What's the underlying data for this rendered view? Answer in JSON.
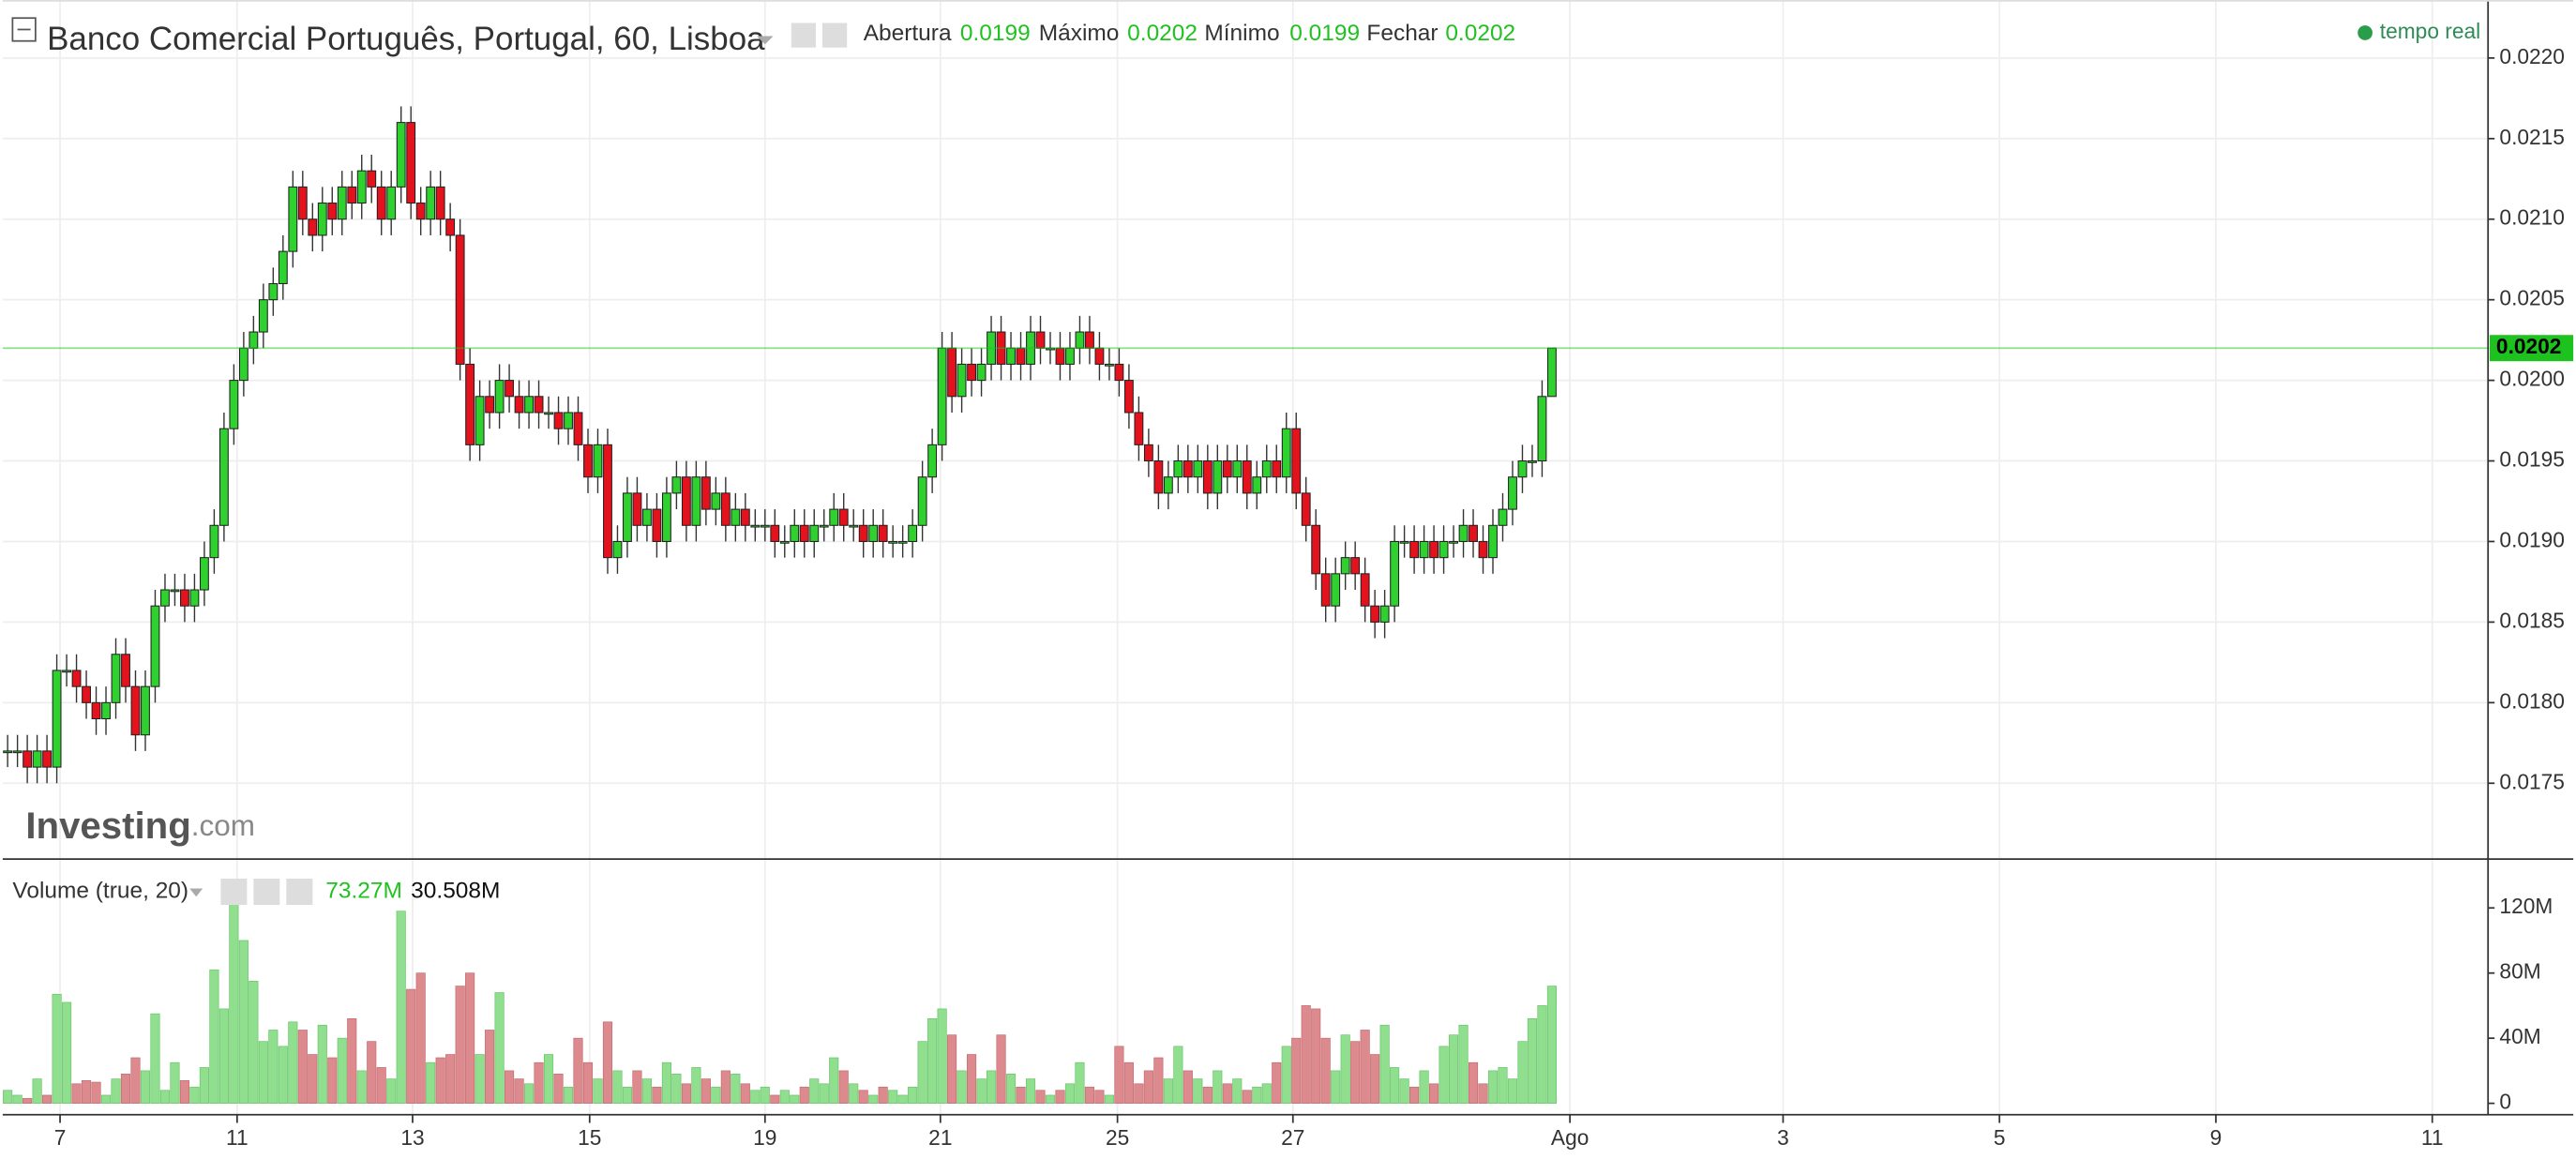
{
  "header": {
    "title": "Banco Comercial Português, Portugal, 60, Lisboa",
    "ohlc_labels": [
      "Abertura",
      "Máximo",
      "Mínimo",
      "Fechar"
    ],
    "ohlc_values": [
      "0.0199",
      "0.0202",
      "0.0199",
      "0.0202"
    ],
    "status": "tempo real",
    "volume_label": "Volume (true, 20)",
    "volume_values": [
      "73.27M",
      "30.508M"
    ],
    "watermark": [
      "Investing",
      ".com"
    ]
  },
  "chart_data": [
    {
      "type": "candlestick",
      "up_color": "#2ed12e",
      "down_color": "#e3121c",
      "xlim": [
        -0.5,
        252.17
      ],
      "ylim": [
        0.01704,
        0.02236
      ],
      "xticks": [
        {
          "value": 5.33,
          "label": "7"
        },
        {
          "value": 23.33,
          "label": "11"
        },
        {
          "value": 41.17,
          "label": "13"
        },
        {
          "value": 59.17,
          "label": "15"
        },
        {
          "value": 77,
          "label": "19"
        },
        {
          "value": 94.83,
          "label": "21"
        },
        {
          "value": 112.83,
          "label": "25"
        },
        {
          "value": 130.67,
          "label": "27"
        },
        {
          "value": 158.83,
          "label": "Ago"
        },
        {
          "value": 180.5,
          "label": "3"
        },
        {
          "value": 202.5,
          "label": "5"
        },
        {
          "value": 224.5,
          "label": "9"
        },
        {
          "value": 246.5,
          "label": "11"
        }
      ],
      "yticks": [
        0.0175,
        {
          "value": 0.018,
          "label": "0.0180"
        },
        0.0185,
        {
          "value": 0.019,
          "label": "0.0190"
        },
        0.0195,
        {
          "value": 0.02,
          "label": "0.0200"
        },
        0.0205,
        {
          "value": 0.021,
          "label": "0.0210"
        },
        0.0215,
        {
          "value": 0.022,
          "label": "0.0220"
        }
      ],
      "current": {
        "value": 0.0202,
        "label": "0.0202",
        "color": "#1ec21e"
      },
      "open": [
        0.0177,
        0.0177,
        0.0177,
        0.0176,
        0.0177,
        0.0176,
        0.0182,
        0.0182,
        0.0181,
        0.018,
        0.0179,
        0.018,
        0.0183,
        0.0181,
        0.0178,
        0.0181,
        0.0186,
        0.0187,
        0.0187,
        0.0186,
        0.0187,
        0.0189,
        0.0191,
        0.0197,
        0.02,
        0.0202,
        0.0203,
        0.0205,
        0.0206,
        0.0208,
        0.0212,
        0.021,
        0.0209,
        0.0211,
        0.021,
        0.0212,
        0.0211,
        0.0213,
        0.0212,
        0.021,
        0.0212,
        0.0216,
        0.0211,
        0.021,
        0.0212,
        0.021,
        0.0209,
        0.0201,
        0.0196,
        0.0199,
        0.0198,
        0.02,
        0.0199,
        0.0198,
        0.0199,
        0.0198,
        0.0198,
        0.0197,
        0.0198,
        0.0196,
        0.0194,
        0.0196,
        0.0189,
        0.019,
        0.0193,
        0.0191,
        0.0192,
        0.019,
        0.0193,
        0.0194,
        0.0191,
        0.0194,
        0.0192,
        0.0193,
        0.0191,
        0.0192,
        0.0191,
        0.0191,
        0.0191,
        0.019,
        0.019,
        0.0191,
        0.019,
        0.0191,
        0.0191,
        0.0192,
        0.0191,
        0.0191,
        0.019,
        0.0191,
        0.019,
        0.019,
        0.019,
        0.0191,
        0.0194,
        0.0196,
        0.0202,
        0.0199,
        0.0201,
        0.02,
        0.0201,
        0.0203,
        0.0201,
        0.0202,
        0.0201,
        0.0203,
        0.0202,
        0.0202,
        0.0201,
        0.0202,
        0.0203,
        0.0202,
        0.0201,
        0.0201,
        0.02,
        0.0198,
        0.0196,
        0.0195,
        0.0193,
        0.0194,
        0.0195,
        0.0194,
        0.0195,
        0.0193,
        0.0195,
        0.0194,
        0.0195,
        0.0193,
        0.0194,
        0.0195,
        0.0194,
        0.0197,
        0.0193,
        0.0191,
        0.0188,
        0.0186,
        0.0188,
        0.0189,
        0.0188,
        0.0186,
        0.0185,
        0.0186,
        0.019,
        0.019,
        0.0189,
        0.019,
        0.0189,
        0.019,
        0.019,
        0.0191,
        0.019,
        0.0189,
        0.0191,
        0.0192,
        0.0194,
        0.0195,
        0.0195,
        0.0199
      ],
      "high": [
        0.0178,
        0.0178,
        0.0178,
        0.0178,
        0.0178,
        0.0183,
        0.0183,
        0.0183,
        0.0182,
        0.0181,
        0.0181,
        0.0184,
        0.0184,
        0.0182,
        0.0182,
        0.0187,
        0.0188,
        0.0188,
        0.0188,
        0.0188,
        0.019,
        0.0192,
        0.0198,
        0.0201,
        0.0203,
        0.0204,
        0.0206,
        0.0207,
        0.0209,
        0.0213,
        0.0213,
        0.0211,
        0.0212,
        0.0212,
        0.0213,
        0.0213,
        0.0214,
        0.0214,
        0.0213,
        0.0213,
        0.0217,
        0.0217,
        0.0212,
        0.0213,
        0.0213,
        0.0211,
        0.021,
        0.0202,
        0.02,
        0.02,
        0.0201,
        0.0201,
        0.02,
        0.02,
        0.02,
        0.0199,
        0.0199,
        0.0199,
        0.0199,
        0.0197,
        0.0197,
        0.0197,
        0.0191,
        0.0194,
        0.0194,
        0.0193,
        0.0193,
        0.0194,
        0.0195,
        0.0195,
        0.0195,
        0.0195,
        0.0194,
        0.0194,
        0.0193,
        0.0193,
        0.0192,
        0.0192,
        0.0192,
        0.0191,
        0.0192,
        0.0192,
        0.0192,
        0.0192,
        0.0193,
        0.0193,
        0.0192,
        0.0192,
        0.0192,
        0.0192,
        0.0191,
        0.0191,
        0.0192,
        0.0195,
        0.0197,
        0.0203,
        0.0203,
        0.0202,
        0.0202,
        0.0202,
        0.0204,
        0.0204,
        0.0203,
        0.0203,
        0.0204,
        0.0204,
        0.0203,
        0.0203,
        0.0203,
        0.0204,
        0.0204,
        0.0203,
        0.0202,
        0.0202,
        0.0201,
        0.0199,
        0.0197,
        0.0196,
        0.0195,
        0.0196,
        0.0196,
        0.0196,
        0.0196,
        0.0196,
        0.0196,
        0.0196,
        0.0196,
        0.0195,
        0.0196,
        0.0196,
        0.0198,
        0.0198,
        0.0194,
        0.0192,
        0.0189,
        0.0189,
        0.019,
        0.019,
        0.0189,
        0.0187,
        0.0187,
        0.0191,
        0.0191,
        0.0191,
        0.0191,
        0.0191,
        0.0191,
        0.0191,
        0.0192,
        0.0192,
        0.0191,
        0.0192,
        0.0193,
        0.0195,
        0.0196,
        0.0196,
        0.02,
        0.0202
      ],
      "low": [
        0.0176,
        0.0176,
        0.0175,
        0.0175,
        0.0175,
        0.0175,
        0.0181,
        0.018,
        0.0179,
        0.0178,
        0.0178,
        0.0179,
        0.018,
        0.0177,
        0.0177,
        0.018,
        0.0185,
        0.0186,
        0.0185,
        0.0185,
        0.0186,
        0.0188,
        0.019,
        0.0196,
        0.0199,
        0.0201,
        0.0202,
        0.0204,
        0.0205,
        0.0207,
        0.0209,
        0.0208,
        0.0208,
        0.0209,
        0.0209,
        0.021,
        0.021,
        0.0211,
        0.0209,
        0.0209,
        0.0211,
        0.021,
        0.0209,
        0.0209,
        0.0209,
        0.0208,
        0.02,
        0.0195,
        0.0195,
        0.0197,
        0.0197,
        0.0198,
        0.0197,
        0.0197,
        0.0197,
        0.0197,
        0.0196,
        0.0196,
        0.0195,
        0.0193,
        0.0193,
        0.0188,
        0.0188,
        0.0189,
        0.019,
        0.019,
        0.0189,
        0.0189,
        0.0192,
        0.019,
        0.019,
        0.0191,
        0.0191,
        0.019,
        0.019,
        0.019,
        0.019,
        0.019,
        0.0189,
        0.0189,
        0.0189,
        0.0189,
        0.0189,
        0.019,
        0.019,
        0.019,
        0.019,
        0.0189,
        0.0189,
        0.0189,
        0.0189,
        0.0189,
        0.0189,
        0.019,
        0.0193,
        0.0195,
        0.0198,
        0.0198,
        0.0199,
        0.0199,
        0.02,
        0.02,
        0.02,
        0.02,
        0.02,
        0.0201,
        0.0201,
        0.02,
        0.02,
        0.0201,
        0.0201,
        0.02,
        0.02,
        0.0199,
        0.0197,
        0.0195,
        0.0194,
        0.0192,
        0.0192,
        0.0193,
        0.0193,
        0.0193,
        0.0192,
        0.0192,
        0.0193,
        0.0193,
        0.0192,
        0.0192,
        0.0193,
        0.0193,
        0.0193,
        0.0192,
        0.019,
        0.0187,
        0.0185,
        0.0185,
        0.0187,
        0.0187,
        0.0185,
        0.0184,
        0.0184,
        0.0185,
        0.0189,
        0.0188,
        0.0188,
        0.0188,
        0.0188,
        0.0189,
        0.0189,
        0.0189,
        0.0188,
        0.0188,
        0.019,
        0.0191,
        0.0193,
        0.0194,
        0.0194,
        0.0199
      ],
      "close": [
        0.0177,
        0.0177,
        0.0176,
        0.0177,
        0.0176,
        0.0182,
        0.0182,
        0.0181,
        0.018,
        0.0179,
        0.018,
        0.0183,
        0.0181,
        0.0178,
        0.0181,
        0.0186,
        0.0187,
        0.0187,
        0.0186,
        0.0187,
        0.0189,
        0.0191,
        0.0197,
        0.02,
        0.0202,
        0.0203,
        0.0205,
        0.0206,
        0.0208,
        0.0212,
        0.021,
        0.0209,
        0.0211,
        0.021,
        0.0212,
        0.0211,
        0.0213,
        0.0212,
        0.021,
        0.0212,
        0.0216,
        0.0211,
        0.021,
        0.0212,
        0.021,
        0.0209,
        0.0201,
        0.0196,
        0.0199,
        0.0198,
        0.02,
        0.0199,
        0.0198,
        0.0199,
        0.0198,
        0.0198,
        0.0197,
        0.0198,
        0.0196,
        0.0194,
        0.0196,
        0.0189,
        0.019,
        0.0193,
        0.0191,
        0.0192,
        0.019,
        0.0193,
        0.0194,
        0.0191,
        0.0194,
        0.0192,
        0.0193,
        0.0191,
        0.0192,
        0.0191,
        0.0191,
        0.0191,
        0.019,
        0.019,
        0.0191,
        0.019,
        0.0191,
        0.0191,
        0.0192,
        0.0191,
        0.0191,
        0.019,
        0.0191,
        0.019,
        0.019,
        0.019,
        0.0191,
        0.0194,
        0.0196,
        0.0202,
        0.0199,
        0.0201,
        0.02,
        0.0201,
        0.0203,
        0.0201,
        0.0202,
        0.0201,
        0.0203,
        0.0202,
        0.0202,
        0.0201,
        0.0202,
        0.0203,
        0.0202,
        0.0201,
        0.0201,
        0.02,
        0.0198,
        0.0196,
        0.0195,
        0.0193,
        0.0194,
        0.0195,
        0.0194,
        0.0195,
        0.0193,
        0.0195,
        0.0194,
        0.0195,
        0.0193,
        0.0194,
        0.0195,
        0.0194,
        0.0197,
        0.0193,
        0.0191,
        0.0188,
        0.0186,
        0.0188,
        0.0189,
        0.0188,
        0.0186,
        0.0185,
        0.0186,
        0.019,
        0.019,
        0.0189,
        0.019,
        0.0189,
        0.019,
        0.019,
        0.0191,
        0.019,
        0.0189,
        0.0191,
        0.0192,
        0.0194,
        0.0195,
        0.0195,
        0.0199,
        0.0202
      ]
    },
    {
      "type": "bar",
      "up_color": "#8fdf8f",
      "down_color": "#dc8a8e",
      "ylim": [
        -7,
        144
      ],
      "yticks": [
        0,
        {
          "value": 40,
          "label": "40M"
        },
        {
          "value": 80,
          "label": "80M"
        },
        {
          "value": 120,
          "label": "120M"
        }
      ],
      "values": [
        8,
        5,
        3,
        15,
        5,
        67,
        62,
        12,
        14,
        13,
        5,
        15,
        18,
        28,
        20,
        55,
        8,
        25,
        14,
        10,
        22,
        82,
        58,
        132,
        100,
        75,
        38,
        45,
        35,
        50,
        45,
        30,
        48,
        28,
        40,
        52,
        20,
        38,
        22,
        15,
        118,
        70,
        80,
        25,
        28,
        30,
        72,
        80,
        30,
        45,
        68,
        20,
        15,
        12,
        25,
        30,
        18,
        10,
        40,
        25,
        15,
        50,
        20,
        10,
        20,
        15,
        10,
        25,
        18,
        12,
        22,
        15,
        10,
        20,
        18,
        12,
        8,
        10,
        5,
        8,
        5,
        10,
        15,
        12,
        28,
        20,
        12,
        8,
        5,
        10,
        8,
        5,
        10,
        38,
        52,
        58,
        42,
        20,
        30,
        15,
        20,
        42,
        18,
        10,
        15,
        8,
        5,
        8,
        12,
        25,
        10,
        8,
        5,
        35,
        25,
        12,
        20,
        28,
        15,
        35,
        20,
        15,
        10,
        20,
        12,
        15,
        8,
        10,
        12,
        25,
        35,
        40,
        60,
        58,
        40,
        20,
        42,
        38,
        45,
        30,
        48,
        22,
        15,
        10,
        20,
        12,
        35,
        42,
        48,
        25,
        12,
        20,
        22,
        15,
        38,
        52,
        60,
        72
      ]
    }
  ]
}
